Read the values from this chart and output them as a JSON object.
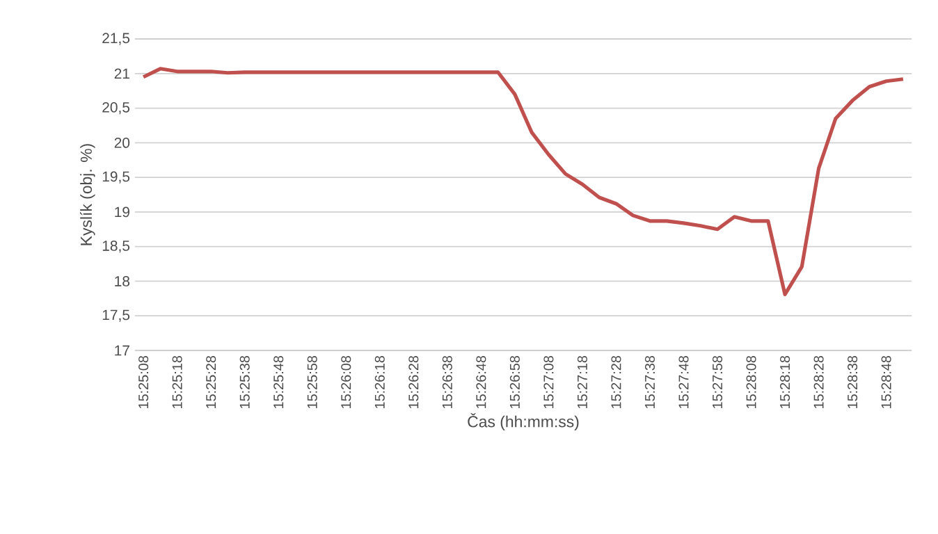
{
  "chart_data": {
    "type": "line",
    "xlabel": "Čas (hh:mm:ss)",
    "ylabel": "Kyslík (obj. %)",
    "categories": [
      "15:25:08",
      null,
      "15:25:18",
      null,
      "15:25:28",
      null,
      "15:25:38",
      null,
      "15:25:48",
      null,
      "15:25:58",
      null,
      "15:26:08",
      null,
      "15:26:18",
      null,
      "15:26:28",
      null,
      "15:26:38",
      null,
      "15:26:48",
      null,
      "15:26:58",
      null,
      "15:27:08",
      null,
      "15:27:18",
      null,
      "15:27:28",
      null,
      "15:27:38",
      null,
      "15:27:48",
      null,
      "15:27:58",
      null,
      "15:28:08",
      null,
      "15:28:18",
      null,
      "15:28:28",
      null,
      "15:28:38",
      null,
      "15:28:48",
      null
    ],
    "series": [
      {
        "color": "#c0504d",
        "values": [
          20.95,
          21.07,
          21.03,
          21.03,
          21.03,
          21.01,
          21.02,
          21.02,
          21.02,
          21.02,
          21.02,
          21.02,
          21.02,
          21.02,
          21.02,
          21.02,
          21.02,
          21.02,
          21.02,
          21.02,
          21.02,
          21.02,
          20.7,
          20.15,
          19.83,
          19.55,
          19.4,
          19.21,
          19.12,
          18.95,
          18.87,
          18.87,
          18.84,
          18.8,
          18.75,
          18.93,
          18.87,
          18.87,
          17.81,
          18.21,
          19.63,
          20.35,
          20.61,
          20.81,
          20.89,
          20.92
        ]
      }
    ],
    "ylim": [
      17,
      21.5
    ],
    "yticks": [
      17,
      {
        "value": 17.5,
        "label": "17,5"
      },
      18,
      {
        "value": 18.5,
        "label": "18,5"
      },
      19,
      {
        "value": 19.5,
        "label": "19,5"
      },
      20,
      {
        "value": 20.5,
        "label": "20,5"
      },
      21,
      {
        "value": 21.5,
        "label": "21,5"
      }
    ],
    "grid": "y",
    "marker": "none",
    "line_style": "solid"
  }
}
